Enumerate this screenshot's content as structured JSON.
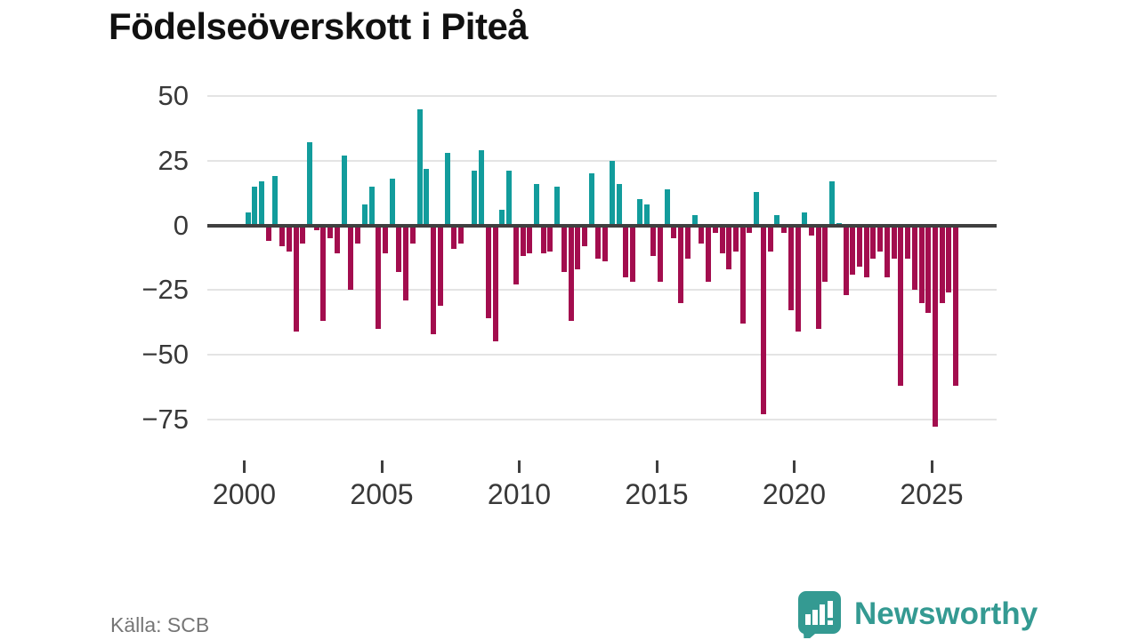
{
  "chart_data": {
    "type": "bar",
    "title": "Födelseöverskott i Piteå",
    "x_unit": "quarter",
    "start_period": "2000 Q1",
    "end_period": "2025 Q4",
    "values": [
      5,
      15,
      17,
      -6,
      19,
      -8,
      -10,
      -41,
      -7,
      32,
      -2,
      -37,
      -5,
      -11,
      27,
      -25,
      -7,
      8,
      15,
      -40,
      -11,
      18,
      -18,
      -29,
      -7,
      45,
      22,
      -42,
      -31,
      28,
      -9,
      -7,
      0,
      21,
      29,
      -36,
      -45,
      6,
      21,
      -23,
      -12,
      -11,
      16,
      -11,
      -10,
      15,
      -18,
      -37,
      -17,
      -8,
      20,
      -13,
      -14,
      25,
      16,
      -20,
      -22,
      10,
      8,
      -12,
      -22,
      14,
      -5,
      -30,
      -13,
      4,
      -7,
      -22,
      -3,
      -11,
      -17,
      -10,
      -38,
      -3,
      13,
      -73,
      -10,
      4,
      -3,
      -33,
      -41,
      5,
      -4,
      -40,
      -22,
      17,
      1,
      -27,
      -19,
      -16,
      -20,
      -13,
      -10,
      -20,
      -13,
      -62,
      -13,
      -25,
      -30,
      -34,
      -78,
      -30,
      -26,
      -62
    ],
    "x_tick_years": [
      2000,
      2005,
      2010,
      2015,
      2020,
      2025
    ],
    "x_tick_labels": [
      "2000",
      "2005",
      "2010",
      "2015",
      "2020",
      "2025"
    ],
    "y_ticks": [
      50,
      25,
      0,
      -25,
      -50,
      -75
    ],
    "y_tick_labels": [
      "50",
      "25",
      "0",
      "−25",
      "−50",
      "−75"
    ],
    "ylim": [
      -80,
      52
    ],
    "grid": "horizontal",
    "legend": "none",
    "positive_color": "#129c9c",
    "negative_color": "#a30d4e",
    "axis_color": "#3f3f3f",
    "gridline_color": "#e4e4e4"
  },
  "footer": {
    "source": "Källa: SCB",
    "brand": "Newsworthy"
  }
}
